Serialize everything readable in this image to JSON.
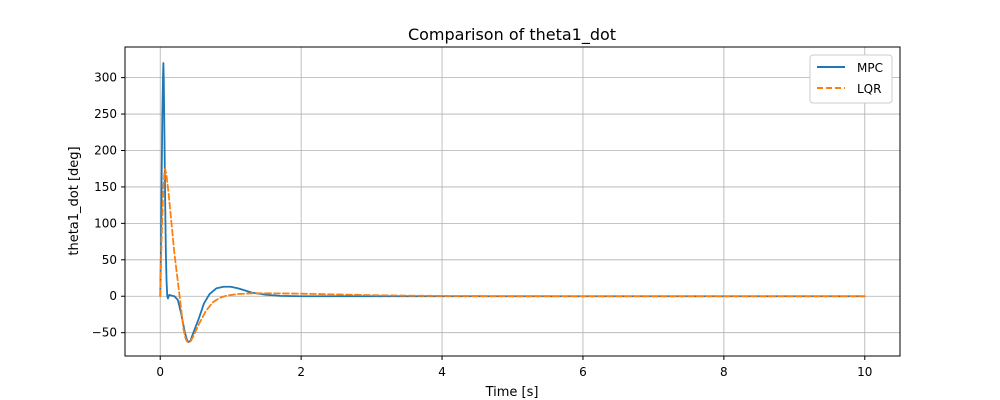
{
  "chart_data": {
    "type": "line",
    "title": "Comparison of theta1_dot",
    "xlabel": "Time [s]",
    "ylabel": "theta1_dot [deg]",
    "xlim": [
      -0.5,
      10.5
    ],
    "ylim": [
      -82,
      342
    ],
    "xticks": [
      0,
      2,
      4,
      6,
      8,
      10
    ],
    "yticks": [
      -50,
      0,
      50,
      100,
      150,
      200,
      250,
      300
    ],
    "grid": true,
    "legend_position": "top-right",
    "series": [
      {
        "name": "MPC",
        "color": "#1f77b4",
        "style": "solid",
        "points": [
          [
            0,
            0
          ],
          [
            0.01,
            60
          ],
          [
            0.02,
            160
          ],
          [
            0.03,
            250
          ],
          [
            0.04,
            305
          ],
          [
            0.045,
            320
          ],
          [
            0.05,
            300
          ],
          [
            0.06,
            220
          ],
          [
            0.07,
            130
          ],
          [
            0.08,
            60
          ],
          [
            0.09,
            20
          ],
          [
            0.1,
            0
          ],
          [
            0.11,
            -3
          ],
          [
            0.12,
            0
          ],
          [
            0.13,
            2
          ],
          [
            0.15,
            1
          ],
          [
            0.2,
            0
          ],
          [
            0.25,
            -5
          ],
          [
            0.3,
            -25
          ],
          [
            0.35,
            -50
          ],
          [
            0.38,
            -60
          ],
          [
            0.4,
            -63
          ],
          [
            0.43,
            -61
          ],
          [
            0.47,
            -50
          ],
          [
            0.55,
            -30
          ],
          [
            0.62,
            -10
          ],
          [
            0.7,
            3
          ],
          [
            0.8,
            11
          ],
          [
            0.9,
            13
          ],
          [
            1.0,
            13
          ],
          [
            1.1,
            11
          ],
          [
            1.2,
            8
          ],
          [
            1.3,
            5
          ],
          [
            1.5,
            2
          ],
          [
            1.7,
            0.5
          ],
          [
            2.0,
            0
          ],
          [
            2.5,
            0
          ],
          [
            3,
            0
          ],
          [
            4,
            0
          ],
          [
            5,
            0
          ],
          [
            6,
            0
          ],
          [
            7,
            0
          ],
          [
            8,
            0
          ],
          [
            9,
            0
          ],
          [
            10,
            0
          ]
        ]
      },
      {
        "name": "LQR",
        "color": "#ff7f0e",
        "style": "dashed",
        "points": [
          [
            0,
            0
          ],
          [
            0.02,
            80
          ],
          [
            0.04,
            140
          ],
          [
            0.06,
            170
          ],
          [
            0.07,
            175
          ],
          [
            0.09,
            165
          ],
          [
            0.12,
            140
          ],
          [
            0.15,
            110
          ],
          [
            0.2,
            60
          ],
          [
            0.25,
            20
          ],
          [
            0.3,
            -20
          ],
          [
            0.33,
            -45
          ],
          [
            0.36,
            -58
          ],
          [
            0.38,
            -62
          ],
          [
            0.4,
            -63
          ],
          [
            0.43,
            -62
          ],
          [
            0.47,
            -55
          ],
          [
            0.55,
            -38
          ],
          [
            0.65,
            -20
          ],
          [
            0.75,
            -8
          ],
          [
            0.85,
            -2
          ],
          [
            0.95,
            1
          ],
          [
            1.1,
            3
          ],
          [
            1.3,
            4
          ],
          [
            1.6,
            4
          ],
          [
            2.0,
            3.5
          ],
          [
            2.5,
            2.5
          ],
          [
            3.0,
            1.5
          ],
          [
            3.5,
            0.8
          ],
          [
            4.0,
            0.4
          ],
          [
            5,
            0.1
          ],
          [
            6,
            0
          ],
          [
            7,
            0
          ],
          [
            8,
            0
          ],
          [
            9,
            0
          ],
          [
            10,
            0
          ]
        ]
      }
    ]
  }
}
